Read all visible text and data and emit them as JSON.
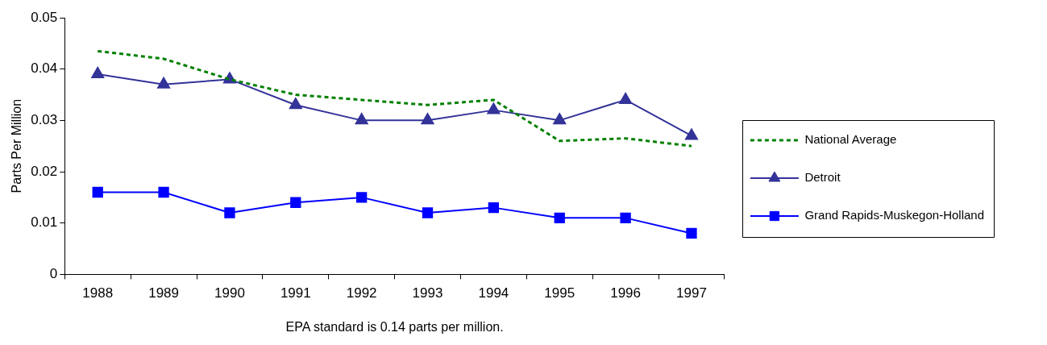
{
  "chart_data": {
    "type": "line",
    "xlabel": "EPA standard is 0.14 parts per million.",
    "ylabel": "Parts Per Million",
    "categories": [
      "1988",
      "1989",
      "1990",
      "1991",
      "1992",
      "1993",
      "1994",
      "1995",
      "1996",
      "1997"
    ],
    "ylim": [
      0,
      0.05
    ],
    "yticks": [
      0,
      0.01,
      0.02,
      0.03,
      0.04,
      0.05
    ],
    "grid": false,
    "legend": "right",
    "series": [
      {
        "name": "National Average",
        "color": "#008000",
        "line_style": "dashed",
        "marker": "none",
        "values": [
          0.0435,
          0.042,
          0.038,
          0.035,
          0.034,
          0.033,
          0.034,
          0.026,
          0.0265,
          0.025
        ]
      },
      {
        "name": "Detroit",
        "color": "#333399",
        "line_style": "solid",
        "marker": "triangle",
        "values": [
          0.039,
          0.037,
          0.038,
          0.033,
          0.03,
          0.03,
          0.032,
          0.03,
          0.034,
          0.027
        ]
      },
      {
        "name": "Grand Rapids-Muskegon-Holland",
        "color": "#0000ff",
        "line_style": "solid",
        "marker": "square",
        "values": [
          0.016,
          0.016,
          0.012,
          0.014,
          0.015,
          0.012,
          0.013,
          0.011,
          0.011,
          0.008
        ]
      }
    ]
  }
}
